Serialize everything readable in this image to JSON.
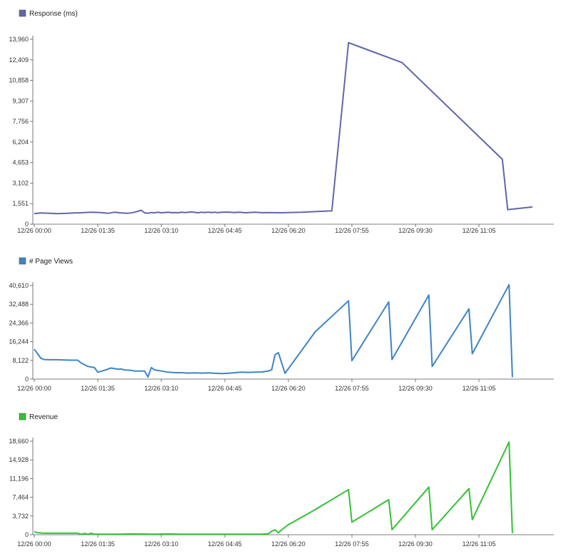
{
  "chart_data": [
    {
      "type": "line",
      "legend": "Response (ms)",
      "color": "#6066a8",
      "x_ticks": [
        "12/26 00:00",
        "12/26 01:35",
        "12/26 03:10",
        "12/26 04:45",
        "12/26 06:20",
        "12/26 07:55",
        "12/26 09:30",
        "12/26 11:05"
      ],
      "y_ticks": [
        "0",
        "1,551",
        "3,102",
        "4,653",
        "6,204",
        "7,756",
        "9,307",
        "10,858",
        "12,409",
        "13,960"
      ],
      "ylim": [
        0,
        13960
      ],
      "xlim_minutes": [
        0,
        745
      ],
      "x": [
        0,
        10,
        20,
        35,
        50,
        60,
        70,
        85,
        100,
        110,
        120,
        130,
        140,
        150,
        160,
        165,
        170,
        175,
        180,
        185,
        190,
        195,
        200,
        205,
        210,
        215,
        220,
        225,
        235,
        245,
        250,
        255,
        260,
        265,
        270,
        275,
        280,
        290,
        300,
        305,
        310,
        315,
        320,
        330,
        340,
        350,
        360,
        370,
        380,
        400,
        420,
        445,
        470,
        550,
        590,
        640,
        710
      ],
      "values": [
        800,
        850,
        830,
        800,
        820,
        850,
        860,
        900,
        880,
        820,
        900,
        850,
        820,
        900,
        1050,
        850,
        830,
        880,
        860,
        900,
        860,
        880,
        900,
        870,
        880,
        860,
        900,
        880,
        920,
        860,
        900,
        880,
        910,
        880,
        900,
        870,
        900,
        910,
        880,
        900,
        890,
        860,
        880,
        900,
        870,
        880,
        870,
        860,
        880,
        900,
        950,
        1000,
        13700,
        12200,
        4900,
        1100,
        1300
      ],
      "x_override": [
        0,
        10,
        20,
        35,
        50,
        60,
        70,
        85,
        100,
        110,
        120,
        130,
        140,
        150,
        160,
        165,
        170,
        175,
        180,
        185,
        190,
        195,
        200,
        205,
        210,
        215,
        220,
        225,
        235,
        245,
        250,
        255,
        260,
        265,
        270,
        275,
        280,
        290,
        300,
        305,
        310,
        315,
        320,
        330,
        340,
        350,
        360,
        370,
        380,
        400,
        420,
        445,
        470,
        550,
        700,
        708,
        745
      ]
    },
    {
      "type": "line",
      "legend": "# Page Views",
      "color": "#3d85c6",
      "x_ticks": [
        "12/26 00:00",
        "12/26 01:35",
        "12/26 03:10",
        "12/26 04:45",
        "12/26 06:20",
        "12/26 07:55",
        "12/26 09:30",
        "12/26 11:05"
      ],
      "y_ticks": [
        "0",
        "8,122",
        "16,244",
        "24,366",
        "32,488",
        "40,610"
      ],
      "ylim": [
        0,
        40610
      ],
      "xlim_minutes": [
        0,
        745
      ],
      "x": [
        0,
        5,
        10,
        15,
        25,
        35,
        45,
        55,
        65,
        70,
        80,
        90,
        95,
        105,
        115,
        125,
        130,
        135,
        145,
        150,
        155,
        165,
        170,
        175,
        180,
        190,
        200,
        210,
        220,
        230,
        240,
        250,
        260,
        270,
        280,
        290,
        300,
        310,
        320,
        330,
        340,
        350,
        355,
        360,
        365,
        375,
        420,
        470,
        475,
        530,
        535,
        590,
        595,
        650,
        655,
        710,
        715
      ],
      "values": [
        13000,
        11000,
        9000,
        8500,
        8400,
        8400,
        8300,
        8200,
        8200,
        7000,
        5500,
        5000,
        3000,
        3800,
        4800,
        4300,
        4400,
        4000,
        3800,
        3500,
        3500,
        3500,
        900,
        5000,
        4000,
        3500,
        3000,
        2800,
        2800,
        2600,
        2700,
        2600,
        2700,
        2500,
        2400,
        2500,
        2800,
        3000,
        2900,
        3000,
        3100,
        3500,
        4000,
        10500,
        11500,
        2500,
        20500,
        34000,
        8000,
        33500,
        8500,
        36500,
        5500,
        30500,
        11000,
        41000,
        800
      ]
    },
    {
      "type": "line",
      "legend": "Revenue",
      "color": "#33c233",
      "x_ticks": [
        "12/26 00:00",
        "12/26 01:35",
        "12/26 03:10",
        "12/26 04:45",
        "12/26 06:20",
        "12/26 07:55",
        "12/26 09:30",
        "12/26 11:05"
      ],
      "y_ticks": [
        "0",
        "3,732",
        "7,464",
        "11,196",
        "14,928",
        "18,660"
      ],
      "ylim": [
        0,
        18660
      ],
      "xlim_minutes": [
        0,
        745
      ],
      "x": [
        0,
        5,
        15,
        30,
        50,
        65,
        70,
        75,
        80,
        85,
        90,
        100,
        120,
        150,
        180,
        200,
        220,
        250,
        280,
        300,
        320,
        340,
        350,
        355,
        360,
        365,
        370,
        380,
        420,
        470,
        475,
        530,
        535,
        590,
        595,
        650,
        655,
        710,
        715
      ],
      "values": [
        600,
        400,
        300,
        300,
        300,
        300,
        100,
        250,
        100,
        300,
        100,
        100,
        100,
        150,
        100,
        150,
        100,
        100,
        100,
        100,
        100,
        100,
        200,
        700,
        1000,
        400,
        1000,
        2000,
        5000,
        9000,
        2500,
        7000,
        1000,
        9500,
        1000,
        9200,
        3000,
        18500,
        300
      ]
    }
  ]
}
